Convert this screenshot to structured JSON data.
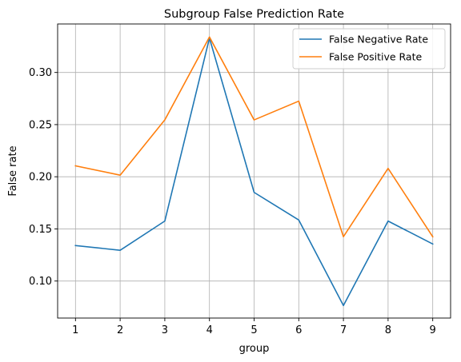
{
  "chart_data": {
    "type": "line",
    "title": "Subgroup False Prediction Rate",
    "xlabel": "group",
    "ylabel": "False rate",
    "x": [
      1,
      2,
      3,
      4,
      5,
      6,
      7,
      8,
      9
    ],
    "xticks": [
      "1",
      "2",
      "3",
      "4",
      "5",
      "6",
      "7",
      "8",
      "9"
    ],
    "yticks": [
      "0.10",
      "0.15",
      "0.20",
      "0.25",
      "0.30"
    ],
    "ytick_values": [
      0.1,
      0.15,
      0.2,
      0.25,
      0.3
    ],
    "xlim": [
      0.6,
      9.4
    ],
    "ylim": [
      0.0645,
      0.3465
    ],
    "grid": true,
    "legend_position": "top-right",
    "series": [
      {
        "name": "False Negative Rate",
        "color": "#1f77b4",
        "values": [
          0.134,
          0.1295,
          0.1575,
          0.333,
          0.185,
          0.1585,
          0.0765,
          0.1575,
          0.1355
        ]
      },
      {
        "name": "False Positive Rate",
        "color": "#ff7f0e",
        "values": [
          0.2105,
          0.2015,
          0.2545,
          0.334,
          0.2545,
          0.2725,
          0.1425,
          0.208,
          0.1425
        ]
      }
    ]
  }
}
